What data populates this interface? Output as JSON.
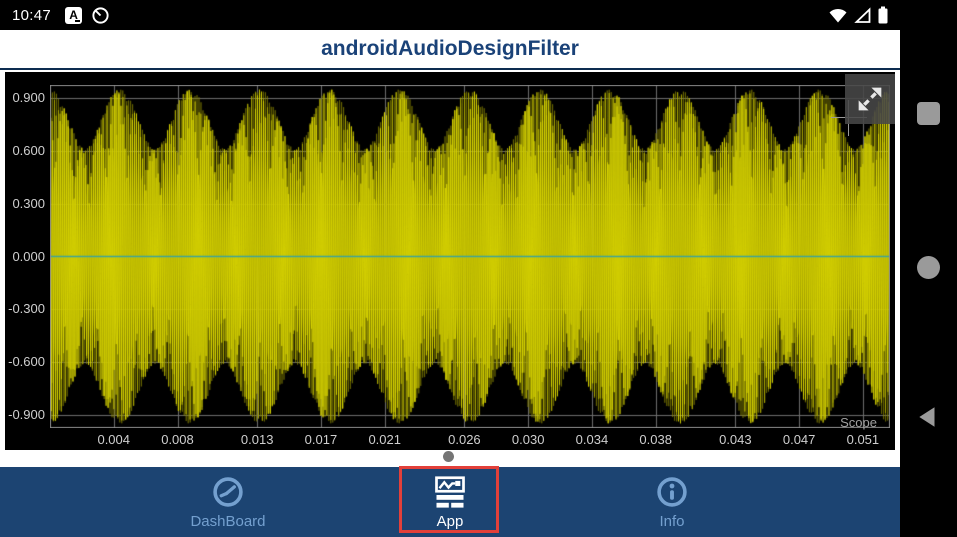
{
  "status_bar": {
    "time": "10:47",
    "left_icons": [
      "input-method-a-icon",
      "data-saver-icon"
    ],
    "right_icons": [
      "wifi-icon",
      "cell-signal-icon",
      "battery-icon"
    ]
  },
  "title_bar": {
    "title": "androidAudioDesignFilter"
  },
  "chart_data": {
    "type": "line",
    "title": "Scope",
    "xlabel": "",
    "ylabel": "",
    "x_ticks": [
      {
        "label": "0.004",
        "value": 0.004
      },
      {
        "label": "0.008",
        "value": 0.008
      },
      {
        "label": "0.013",
        "value": 0.013
      },
      {
        "label": "0.017",
        "value": 0.017
      },
      {
        "label": "0.021",
        "value": 0.021
      },
      {
        "label": "0.026",
        "value": 0.026
      },
      {
        "label": "0.030",
        "value": 0.03
      },
      {
        "label": "0.034",
        "value": 0.034
      },
      {
        "label": "0.038",
        "value": 0.038
      },
      {
        "label": "0.043",
        "value": 0.043
      },
      {
        "label": "0.047",
        "value": 0.047
      },
      {
        "label": "0.051",
        "value": 0.051
      }
    ],
    "y_ticks": [
      {
        "label": "0.900",
        "value": 0.9
      },
      {
        "label": "0.600",
        "value": 0.6
      },
      {
        "label": "0.300",
        "value": 0.3
      },
      {
        "label": "0.000",
        "value": 0.0
      },
      {
        "label": "-0.300",
        "value": -0.3
      },
      {
        "label": "-0.600",
        "value": -0.6
      },
      {
        "label": "-0.900",
        "value": -0.9
      }
    ],
    "xlim": [
      0,
      0.0527
    ],
    "ylim": [
      -0.975,
      0.975
    ],
    "grid": true,
    "legend": "none",
    "scope_watermark": "Scope",
    "series": [
      {
        "name": "audio-waveform",
        "description": "dense amplitude-modulated sine (beats), fills plot width",
        "carrier_cycles": 430,
        "beat_cycles": 12,
        "amp_main": 0.78,
        "amp_beat": 0.17
      }
    ],
    "colors": {
      "background": "#000000",
      "grid": "#6e6e6e",
      "border": "#8a8a8a",
      "zero_line": "#3aa39b",
      "trace_dark": "#8a8700",
      "trace": "#a8a400",
      "trace_bright": "#e0dc00",
      "tick_text": "#cfcfcf",
      "scope_label": "#a0a0a0"
    }
  },
  "expand_button": {
    "icon": "open-in-full-icon"
  },
  "page_indicator": {
    "dot_count": 1
  },
  "bottom_nav": {
    "background": "#1c4472",
    "inactive_color": "#74a0cf",
    "active_color": "#ffffff",
    "highlight_color": "#e2403a",
    "items": [
      {
        "label": "DashBoard",
        "icon": "gauge-icon",
        "active": false
      },
      {
        "label": "App",
        "icon": "waveform-panel-icon",
        "active": true,
        "highlighted": true
      },
      {
        "label": "Info",
        "icon": "info-icon",
        "active": false
      }
    ]
  },
  "system_nav": {
    "buttons": [
      "recents-square",
      "home-circle",
      "back-triangle"
    ]
  }
}
